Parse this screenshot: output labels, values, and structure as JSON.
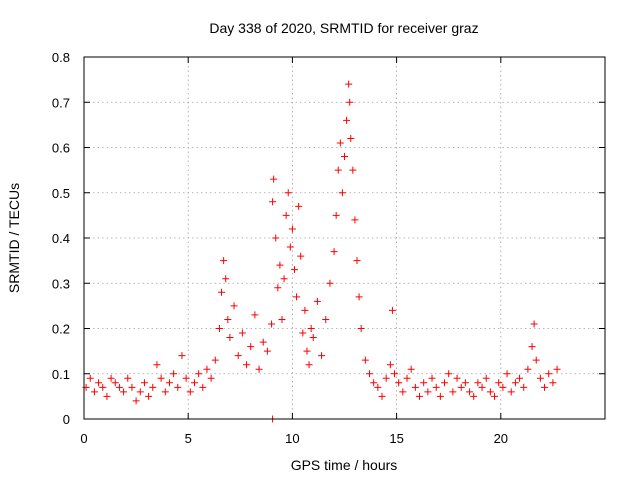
{
  "chart_data": {
    "type": "scatter",
    "title": "Day 338 of 2020, SRMTID for receiver graz",
    "xlabel": "GPS time / hours",
    "ylabel": "SRMTID / TECUs",
    "xlim": [
      0,
      25
    ],
    "ylim": [
      0,
      0.8
    ],
    "xticks": [
      0,
      5,
      10,
      15,
      20
    ],
    "xtick_labels": [
      "0",
      "5",
      "10",
      "15",
      "20"
    ],
    "yticks": [
      0,
      0.1,
      0.2,
      0.3,
      0.4,
      0.5,
      0.6,
      0.7,
      0.8
    ],
    "ytick_labels": [
      "0",
      "0.1",
      "0.2",
      "0.3",
      "0.4",
      "0.5",
      "0.6",
      "0.7",
      "0.8"
    ],
    "grid": true,
    "marker": "+",
    "color": "#ff0000",
    "series": [
      {
        "name": "SRMTID",
        "x": [
          0.1,
          0.3,
          0.5,
          0.7,
          0.9,
          1.1,
          1.3,
          1.5,
          1.7,
          1.9,
          2.1,
          2.3,
          2.5,
          2.7,
          2.9,
          3.1,
          3.3,
          3.5,
          3.7,
          3.9,
          4.1,
          4.3,
          4.5,
          4.7,
          4.9,
          5.1,
          5.3,
          5.5,
          5.7,
          5.9,
          6.1,
          6.3,
          6.5,
          6.6,
          6.7,
          6.8,
          6.9,
          7.0,
          7.2,
          7.4,
          7.6,
          7.8,
          8.0,
          8.2,
          8.4,
          8.6,
          8.8,
          9.0,
          9.05,
          9.1,
          9.2,
          9.3,
          9.4,
          9.5,
          9.6,
          9.7,
          9.8,
          9.9,
          10.0,
          10.1,
          10.2,
          10.3,
          10.4,
          10.5,
          10.6,
          10.7,
          10.8,
          10.9,
          11.0,
          11.2,
          11.4,
          11.6,
          11.8,
          12.0,
          12.1,
          12.2,
          12.3,
          12.4,
          12.5,
          12.6,
          12.7,
          12.75,
          12.8,
          12.9,
          13.0,
          13.1,
          13.2,
          13.3,
          13.5,
          13.7,
          13.9,
          14.1,
          14.3,
          14.5,
          14.7,
          14.8,
          14.9,
          15.1,
          15.3,
          15.5,
          15.7,
          15.9,
          16.1,
          16.3,
          16.5,
          16.7,
          16.9,
          17.1,
          17.3,
          17.5,
          17.7,
          17.9,
          18.1,
          18.3,
          18.5,
          18.7,
          18.9,
          19.1,
          19.3,
          19.5,
          19.7,
          19.9,
          20.1,
          20.3,
          20.5,
          20.7,
          20.9,
          21.1,
          21.3,
          21.5,
          21.6,
          21.7,
          21.9,
          22.1,
          22.3,
          22.5,
          22.7,
          9.05
        ],
        "y": [
          0.07,
          0.09,
          0.06,
          0.08,
          0.07,
          0.05,
          0.09,
          0.08,
          0.07,
          0.06,
          0.09,
          0.07,
          0.04,
          0.06,
          0.08,
          0.05,
          0.07,
          0.12,
          0.09,
          0.06,
          0.08,
          0.1,
          0.07,
          0.14,
          0.09,
          0.06,
          0.08,
          0.1,
          0.07,
          0.11,
          0.09,
          0.13,
          0.2,
          0.28,
          0.35,
          0.31,
          0.22,
          0.18,
          0.25,
          0.14,
          0.19,
          0.12,
          0.16,
          0.23,
          0.11,
          0.17,
          0.15,
          0.21,
          0.48,
          0.53,
          0.4,
          0.29,
          0.34,
          0.22,
          0.31,
          0.45,
          0.5,
          0.38,
          0.42,
          0.33,
          0.27,
          0.47,
          0.36,
          0.19,
          0.24,
          0.15,
          0.12,
          0.2,
          0.18,
          0.26,
          0.14,
          0.22,
          0.3,
          0.37,
          0.45,
          0.55,
          0.61,
          0.5,
          0.58,
          0.66,
          0.74,
          0.7,
          0.62,
          0.55,
          0.44,
          0.35,
          0.27,
          0.2,
          0.13,
          0.1,
          0.08,
          0.07,
          0.05,
          0.09,
          0.12,
          0.24,
          0.1,
          0.08,
          0.06,
          0.09,
          0.11,
          0.07,
          0.05,
          0.08,
          0.06,
          0.09,
          0.07,
          0.05,
          0.08,
          0.1,
          0.06,
          0.09,
          0.07,
          0.08,
          0.06,
          0.05,
          0.08,
          0.07,
          0.09,
          0.06,
          0.05,
          0.08,
          0.07,
          0.1,
          0.06,
          0.08,
          0.09,
          0.07,
          0.11,
          0.16,
          0.21,
          0.13,
          0.09,
          0.07,
          0.1,
          0.08,
          0.11,
          0.0
        ]
      }
    ]
  }
}
